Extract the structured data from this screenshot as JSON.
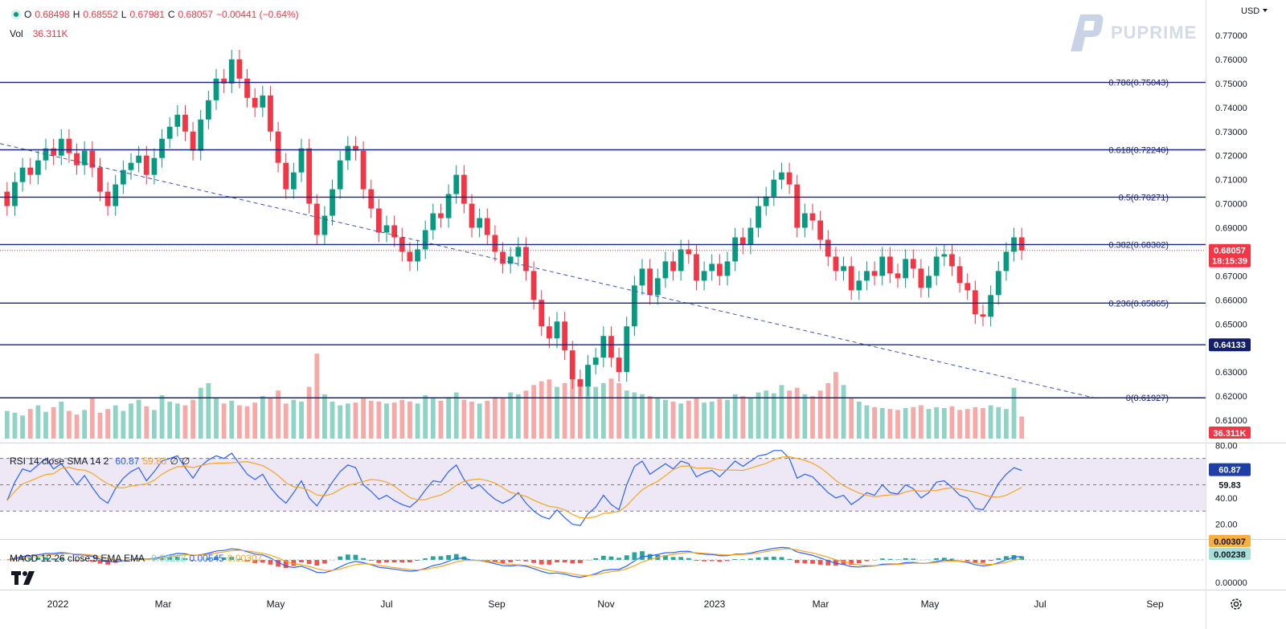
{
  "header": {
    "ohlc": [
      {
        "label": "O",
        "value": "0.68498"
      },
      {
        "label": "H",
        "value": "0.68552"
      },
      {
        "label": "L",
        "value": "0.67981"
      },
      {
        "label": "C",
        "value": "0.68057"
      }
    ],
    "change": "−0.00441 (−0.64%)",
    "vol_label": "Vol",
    "vol_value": "36.311K",
    "currency": "USD",
    "brand": "PUPRIME"
  },
  "rsi_legend": {
    "label": "RSI 14 close SMA 14 2",
    "rsi": "60.87",
    "sma": "59.83",
    "e1": "∅",
    "e2": "∅"
  },
  "macd_legend": {
    "label": "MACD 12 26 close 9 EMA EMA",
    "hist": "0.00238",
    "macd": "0.00545",
    "signal": "0.00307"
  },
  "colors": {
    "up": "#089981",
    "down": "#f23645",
    "fib": "#1a237e",
    "trend": "#3f51b5",
    "rsi": "#2962ff",
    "rsi_sma": "#f5a623",
    "rsi_band": "#ede7f6",
    "macd": "#2962ff",
    "signal": "#f5a623"
  },
  "chart_data": {
    "type": "candlestick",
    "price_axis": {
      "min": 0.605,
      "max": 0.775,
      "ticks": [
        "0.77000",
        "0.76000",
        "0.75000",
        "0.74000",
        "0.73000",
        "0.72000",
        "0.71000",
        "0.70000",
        "0.69000",
        "0.68000",
        "0.67000",
        "0.66000",
        "0.65000",
        "0.64000",
        "0.63000",
        "0.62000",
        "0.61000"
      ]
    },
    "x_axis": {
      "labels": [
        "2022",
        "Mar",
        "May",
        "Jul",
        "Sep",
        "Nov",
        "2023",
        "Mar",
        "May",
        "Jul",
        "Sep"
      ]
    },
    "fib_levels": [
      {
        "label": "0.786(0.75043)",
        "value": 0.75043
      },
      {
        "label": "0.618(0.72240)",
        "value": 0.7224
      },
      {
        "label": "0.5(0.70271)",
        "value": 0.70271
      },
      {
        "label": "0.382(0.68302)",
        "value": 0.68302
      },
      {
        "label": "0.236(0.65865)",
        "value": 0.65865
      },
      {
        "label": "0(0.61927)",
        "value": 0.61927
      }
    ],
    "extra_level": {
      "value": 0.64133,
      "label": "0.64133"
    },
    "last_price": {
      "value": 0.68057,
      "label": "0.68057",
      "countdown": "18:15:39"
    },
    "volume_badge": "36.311K",
    "rsi_axis": {
      "ticks": [
        "80.00",
        "40.00",
        "20.00"
      ],
      "upper": 70,
      "mid": 50,
      "lower": 30,
      "value_label": "60.87",
      "sma_label": "59.83"
    },
    "macd_axis": {
      "ticks": [
        "0.00000"
      ],
      "badge_signal": "0.00307",
      "badge_hist": "0.00238"
    },
    "trend_line": {
      "start": 0.725,
      "end": 0.619
    },
    "closes": [
      0.699,
      0.709,
      0.715,
      0.712,
      0.718,
      0.723,
      0.72,
      0.727,
      0.721,
      0.716,
      0.722,
      0.715,
      0.705,
      0.699,
      0.708,
      0.714,
      0.717,
      0.72,
      0.712,
      0.719,
      0.727,
      0.732,
      0.737,
      0.73,
      0.722,
      0.735,
      0.743,
      0.752,
      0.75,
      0.76,
      0.752,
      0.744,
      0.74,
      0.745,
      0.73,
      0.717,
      0.706,
      0.713,
      0.723,
      0.7,
      0.687,
      0.695,
      0.706,
      0.718,
      0.724,
      0.722,
      0.706,
      0.698,
      0.688,
      0.691,
      0.686,
      0.68,
      0.676,
      0.681,
      0.689,
      0.696,
      0.694,
      0.704,
      0.712,
      0.7,
      0.69,
      0.694,
      0.687,
      0.68,
      0.675,
      0.678,
      0.682,
      0.672,
      0.66,
      0.649,
      0.644,
      0.651,
      0.639,
      0.627,
      0.624,
      0.633,
      0.636,
      0.645,
      0.636,
      0.63,
      0.649,
      0.666,
      0.673,
      0.662,
      0.669,
      0.676,
      0.672,
      0.681,
      0.679,
      0.668,
      0.672,
      0.675,
      0.67,
      0.676,
      0.686,
      0.683,
      0.69,
      0.699,
      0.703,
      0.71,
      0.713,
      0.708,
      0.69,
      0.696,
      0.693,
      0.685,
      0.678,
      0.672,
      0.674,
      0.664,
      0.668,
      0.672,
      0.67,
      0.678,
      0.671,
      0.669,
      0.677,
      0.673,
      0.665,
      0.67,
      0.678,
      0.679,
      0.674,
      0.667,
      0.664,
      0.654,
      0.653,
      0.662,
      0.672,
      0.68,
      0.686,
      0.6806
    ],
    "rsi": [
      38,
      52,
      62,
      60,
      65,
      70,
      62,
      66,
      58,
      50,
      57,
      48,
      40,
      36,
      47,
      55,
      60,
      63,
      53,
      60,
      68,
      70,
      72,
      63,
      55,
      64,
      69,
      72,
      70,
      74,
      66,
      58,
      54,
      58,
      48,
      41,
      36,
      44,
      53,
      40,
      34,
      43,
      52,
      60,
      65,
      63,
      50,
      45,
      39,
      42,
      38,
      35,
      33,
      38,
      46,
      53,
      52,
      60,
      65,
      54,
      47,
      50,
      44,
      39,
      36,
      39,
      44,
      36,
      30,
      26,
      24,
      31,
      25,
      20,
      19,
      28,
      33,
      42,
      35,
      31,
      50,
      64,
      68,
      58,
      62,
      66,
      62,
      68,
      66,
      56,
      59,
      61,
      56,
      62,
      68,
      64,
      68,
      72,
      73,
      76,
      76,
      70,
      55,
      58,
      56,
      50,
      44,
      40,
      42,
      35,
      39,
      44,
      42,
      50,
      44,
      43,
      50,
      47,
      40,
      44,
      52,
      53,
      48,
      42,
      40,
      32,
      31,
      40,
      51,
      58,
      63,
      60.87
    ],
    "volume": [
      0.3,
      0.28,
      0.25,
      0.32,
      0.36,
      0.29,
      0.34,
      0.4,
      0.3,
      0.26,
      0.31,
      0.44,
      0.28,
      0.32,
      0.36,
      0.3,
      0.38,
      0.42,
      0.35,
      0.31,
      0.47,
      0.4,
      0.38,
      0.36,
      0.42,
      0.55,
      0.6,
      0.44,
      0.38,
      0.41,
      0.36,
      0.35,
      0.39,
      0.46,
      0.44,
      0.52,
      0.38,
      0.42,
      0.4,
      0.56,
      0.92,
      0.48,
      0.4,
      0.36,
      0.38,
      0.39,
      0.44,
      0.41,
      0.4,
      0.38,
      0.39,
      0.42,
      0.4,
      0.38,
      0.47,
      0.44,
      0.41,
      0.45,
      0.5,
      0.42,
      0.4,
      0.38,
      0.41,
      0.45,
      0.44,
      0.5,
      0.48,
      0.52,
      0.58,
      0.62,
      0.64,
      0.56,
      0.6,
      0.66,
      0.58,
      0.62,
      0.56,
      0.6,
      0.65,
      0.6,
      0.52,
      0.5,
      0.48,
      0.46,
      0.44,
      0.42,
      0.4,
      0.38,
      0.41,
      0.44,
      0.39,
      0.4,
      0.43,
      0.42,
      0.48,
      0.46,
      0.44,
      0.5,
      0.52,
      0.49,
      0.58,
      0.52,
      0.55,
      0.48,
      0.46,
      0.52,
      0.6,
      0.72,
      0.58,
      0.44,
      0.4,
      0.36,
      0.34,
      0.33,
      0.32,
      0.31,
      0.33,
      0.34,
      0.36,
      0.32,
      0.34,
      0.33,
      0.35,
      0.31,
      0.32,
      0.34,
      0.33,
      0.36,
      0.34,
      0.32,
      0.55,
      0.24
    ]
  }
}
